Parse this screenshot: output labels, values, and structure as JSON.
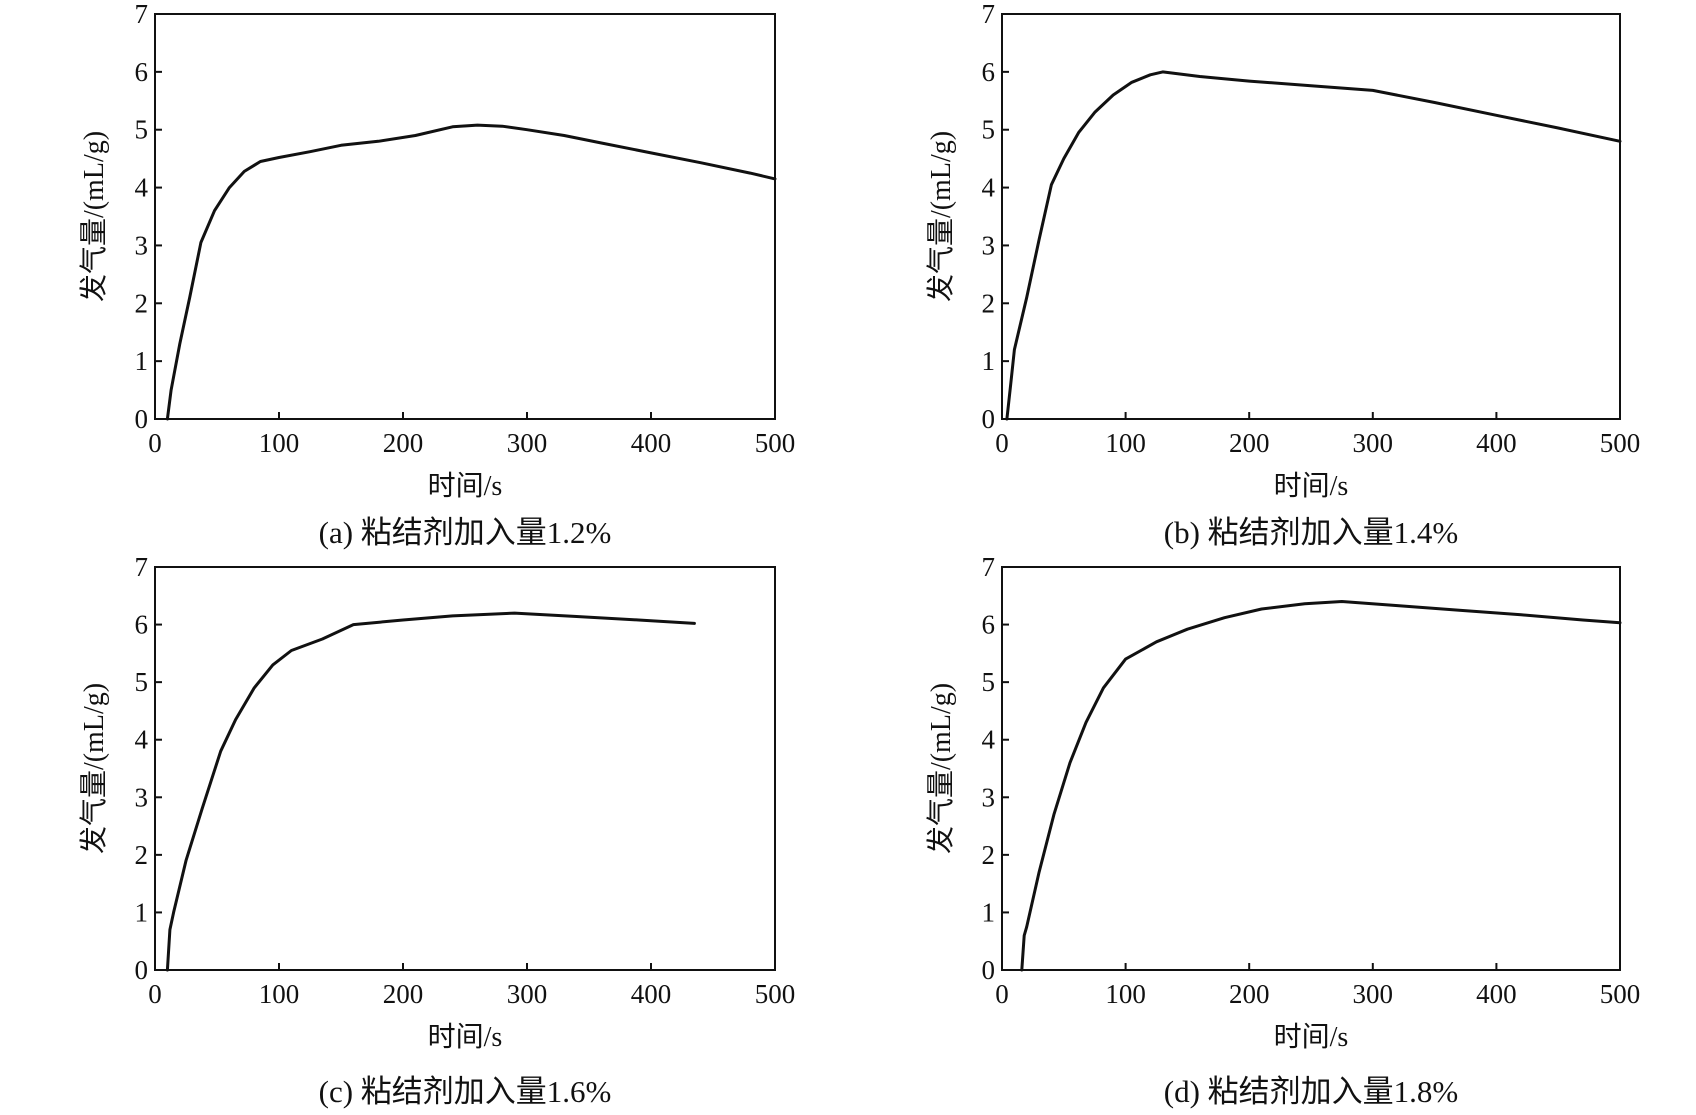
{
  "chart_data": [
    {
      "type": "line",
      "caption": "(a) 粘结剂加入量1.2%",
      "xlabel": "时间/s",
      "ylabel": "发气量/(mL/g)",
      "xlim": [
        0,
        500
      ],
      "ylim": [
        0,
        7
      ],
      "xticks": [
        "0",
        "100",
        "200",
        "300",
        "400",
        "500"
      ],
      "yticks": [
        "0",
        "1",
        "2",
        "3",
        "4",
        "5",
        "6",
        "7"
      ],
      "grid": false,
      "series": [
        {
          "x": [
            10,
            13,
            20,
            28,
            37,
            48,
            60,
            72,
            85,
            100,
            125,
            150,
            180,
            210,
            240,
            260,
            280,
            300,
            330,
            360,
            400,
            440,
            480,
            500
          ],
          "y": [
            0.0,
            0.5,
            1.3,
            2.1,
            3.05,
            3.6,
            4.0,
            4.28,
            4.45,
            4.52,
            4.62,
            4.73,
            4.8,
            4.9,
            5.05,
            5.08,
            5.06,
            5.0,
            4.9,
            4.77,
            4.6,
            4.43,
            4.25,
            4.15
          ]
        }
      ]
    },
    {
      "type": "line",
      "caption": "(b) 粘结剂加入量1.4%",
      "xlabel": "时间/s",
      "ylabel": "发气量/(mL/g)",
      "xlim": [
        0,
        500
      ],
      "ylim": [
        0,
        7
      ],
      "xticks": [
        "0",
        "100",
        "200",
        "300",
        "400",
        "500"
      ],
      "yticks": [
        "0",
        "1",
        "2",
        "3",
        "4",
        "5",
        "6",
        "7"
      ],
      "grid": false,
      "series": [
        {
          "x": [
            4,
            7,
            10,
            20,
            30,
            40,
            50,
            62,
            75,
            90,
            105,
            120,
            130,
            160,
            200,
            250,
            300,
            350,
            400,
            450,
            500
          ],
          "y": [
            0.0,
            0.6,
            1.2,
            2.1,
            3.1,
            4.05,
            4.5,
            4.95,
            5.3,
            5.6,
            5.82,
            5.95,
            6.0,
            5.92,
            5.84,
            5.76,
            5.68,
            5.47,
            5.25,
            5.03,
            4.8
          ]
        }
      ]
    },
    {
      "type": "line",
      "caption": "(c) 粘结剂加入量1.6%",
      "xlabel": "时间/s",
      "ylabel": "发气量/(mL/g)",
      "xlim": [
        0,
        500
      ],
      "ylim": [
        0,
        7
      ],
      "xticks": [
        "0",
        "100",
        "200",
        "300",
        "400",
        "500"
      ],
      "yticks": [
        "0",
        "1",
        "2",
        "3",
        "4",
        "5",
        "6",
        "7"
      ],
      "grid": false,
      "series": [
        {
          "x": [
            10,
            12,
            15,
            25,
            38,
            53,
            65,
            80,
            95,
            110,
            135,
            160,
            200,
            240,
            290,
            340,
            390,
            435
          ],
          "y": [
            0.0,
            0.7,
            1.0,
            1.9,
            2.8,
            3.8,
            4.35,
            4.9,
            5.3,
            5.55,
            5.75,
            6.0,
            6.08,
            6.15,
            6.2,
            6.14,
            6.08,
            6.02
          ]
        }
      ]
    },
    {
      "type": "line",
      "caption": "(d) 粘结剂加入量1.8%",
      "xlabel": "时间/s",
      "ylabel": "发气量/(mL/g)",
      "xlim": [
        0,
        500
      ],
      "ylim": [
        0,
        7
      ],
      "xticks": [
        "0",
        "100",
        "200",
        "300",
        "400",
        "500"
      ],
      "yticks": [
        "0",
        "1",
        "2",
        "3",
        "4",
        "5",
        "6",
        "7"
      ],
      "grid": false,
      "series": [
        {
          "x": [
            16,
            18,
            20,
            30,
            42,
            55,
            68,
            82,
            100,
            125,
            150,
            180,
            210,
            245,
            275,
            320,
            370,
            420,
            470,
            500
          ],
          "y": [
            0.0,
            0.6,
            0.75,
            1.7,
            2.7,
            3.6,
            4.3,
            4.9,
            5.4,
            5.7,
            5.92,
            6.12,
            6.27,
            6.36,
            6.4,
            6.33,
            6.25,
            6.17,
            6.08,
            6.03
          ]
        }
      ]
    }
  ]
}
